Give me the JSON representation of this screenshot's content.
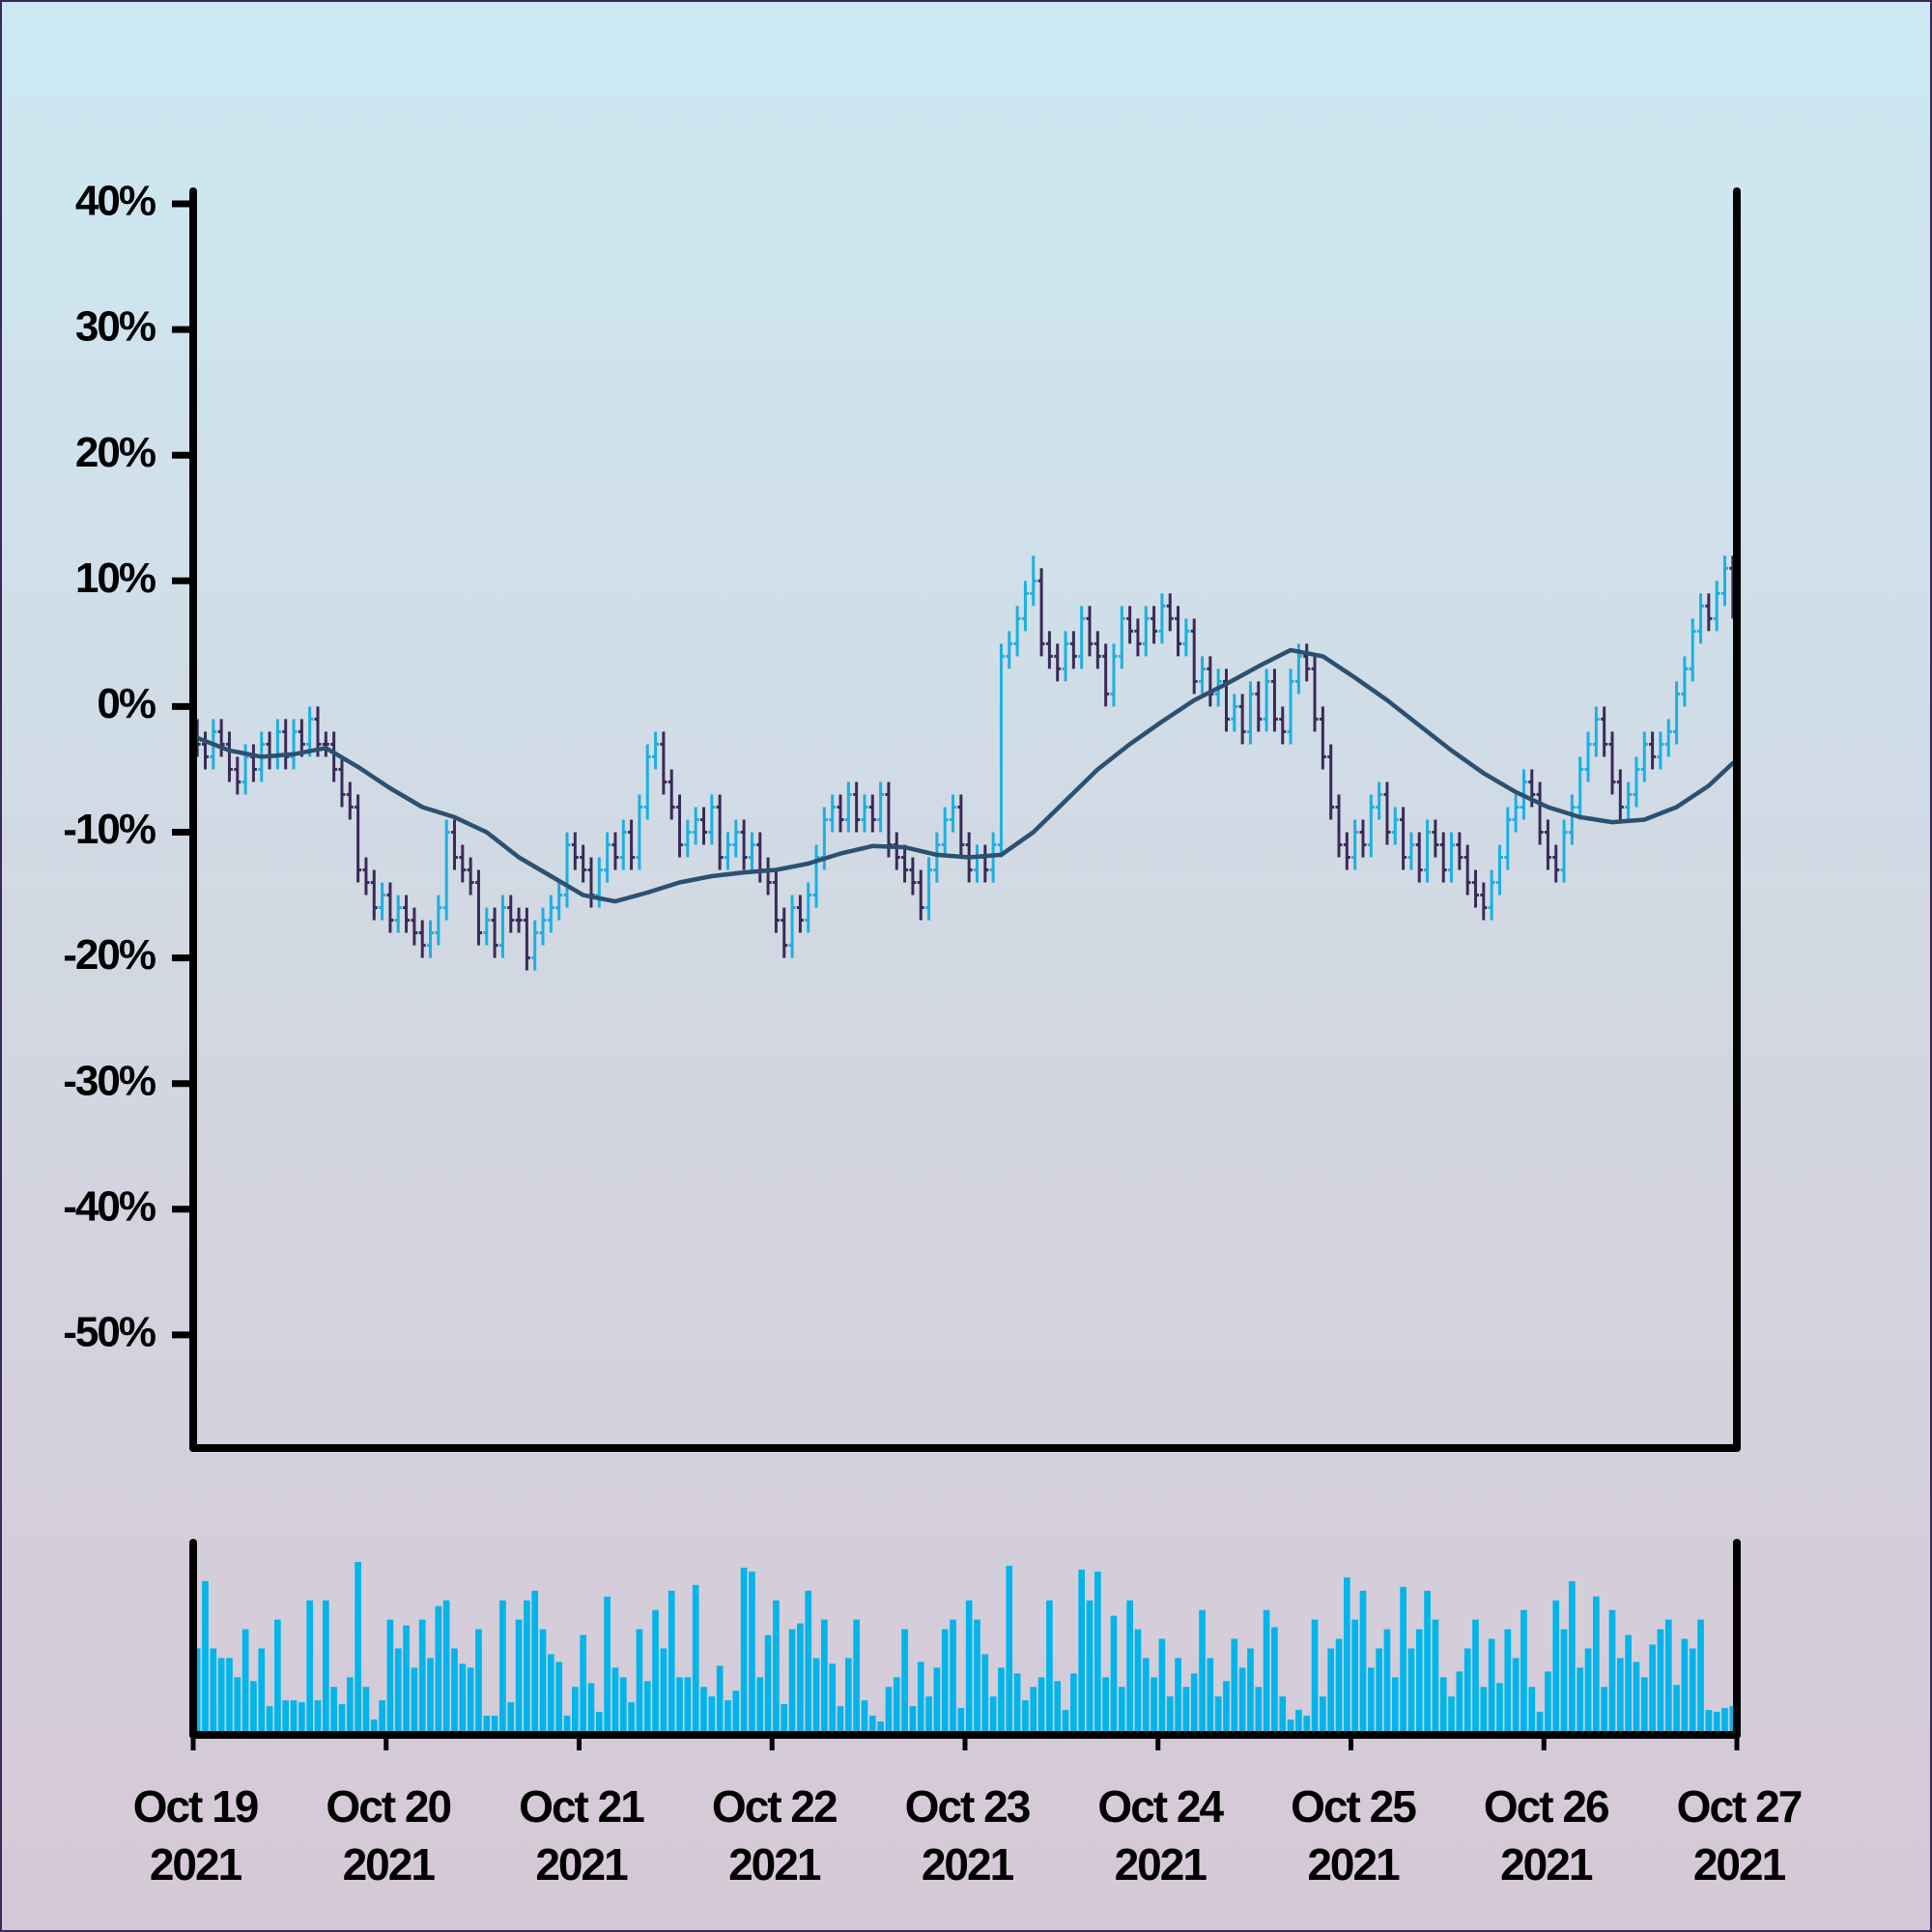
{
  "chart_data": {
    "type": "ohlc",
    "xlim": [
      0,
      192
    ],
    "xticks": [
      {
        "value": 0,
        "label": "Oct 19\n2021"
      },
      {
        "value": 24,
        "label": "Oct 20\n2021"
      },
      {
        "value": 48,
        "label": "Oct 21\n2021"
      },
      {
        "value": 72,
        "label": "Oct 22\n2021"
      },
      {
        "value": 96,
        "label": "Oct 23\n2021"
      },
      {
        "value": 120,
        "label": "Oct 24\n2021"
      },
      {
        "value": 144,
        "label": "Oct 25\n2021"
      },
      {
        "value": 168,
        "label": "Oct 26\n2021"
      },
      {
        "value": 192,
        "label": "Oct 27\n2021"
      }
    ],
    "ylim": [
      -59,
      41
    ],
    "yticks": [
      {
        "value": 40,
        "label": "40%"
      },
      {
        "value": 30,
        "label": "30%"
      },
      {
        "value": 20,
        "label": "20%"
      },
      {
        "value": 10,
        "label": "10%"
      },
      {
        "value": 0,
        "label": "0%"
      },
      {
        "value": -10,
        "label": "-10%"
      },
      {
        "value": -20,
        "label": "-20%"
      },
      {
        "value": -30,
        "label": "-30%"
      },
      {
        "value": -40,
        "label": "-40%"
      },
      {
        "value": -50,
        "label": "-50%"
      }
    ],
    "up_color": "#1cb0e2",
    "down_color": "#3a2a58",
    "open": [
      -2,
      -3,
      -4,
      -2,
      -3,
      -5,
      -6,
      -4,
      -5,
      -3,
      -4,
      -2,
      -4,
      -2,
      -3,
      -1,
      -3,
      -3,
      -5,
      -7,
      -8,
      -13,
      -14,
      -16,
      -15,
      -17,
      -16,
      -17,
      -18,
      -19,
      -18,
      -16,
      -10,
      -12,
      -13,
      -14,
      -18,
      -17,
      -19,
      -16,
      -17,
      -17,
      -20,
      -18,
      -17,
      -16,
      -15,
      -11,
      -12,
      -13,
      -15,
      -13,
      -11,
      -12,
      -10,
      -12,
      -8,
      -4,
      -3,
      -6,
      -8,
      -11,
      -10,
      -9,
      -10,
      -8,
      -12,
      -11,
      -10,
      -12,
      -11,
      -13,
      -14,
      -17,
      -19,
      -16,
      -17,
      -15,
      -12,
      -9,
      -8,
      -9,
      -7,
      -9,
      -8,
      -9,
      -7,
      -11,
      -12,
      -13,
      -14,
      -16,
      -13,
      -11,
      -9,
      -8,
      -11,
      -13,
      -12,
      -13,
      -11,
      4,
      5,
      7,
      9,
      10,
      5,
      4,
      3,
      5,
      4,
      7,
      5,
      4,
      1,
      4,
      7,
      6,
      5,
      7,
      6,
      8,
      7,
      5,
      6,
      2,
      3,
      1,
      2,
      -1,
      0,
      -2,
      1,
      -1,
      2,
      -1,
      -2,
      2,
      4,
      3,
      -1,
      -4,
      -8,
      -11,
      -12,
      -10,
      -11,
      -8,
      -7,
      -10,
      -9,
      -12,
      -11,
      -13,
      -10,
      -11,
      -13,
      -11,
      -12,
      -14,
      -15,
      -16,
      -14,
      -12,
      -9,
      -8,
      -6,
      -7,
      -10,
      -12,
      -13,
      -10,
      -8,
      -5,
      -3,
      -1,
      -3,
      -6,
      -8,
      -7,
      -5,
      -3,
      -4,
      -3,
      -2,
      1,
      3,
      6,
      8,
      7,
      9,
      11
    ],
    "high": [
      -1,
      -2,
      -1,
      -1,
      -2,
      -4,
      -3,
      -3,
      -2,
      -2,
      -1,
      -1,
      -1,
      -1,
      0,
      0,
      -2,
      -2,
      -4,
      -6,
      -7,
      -12,
      -13,
      -14,
      -14,
      -15,
      -15,
      -16,
      -17,
      -17,
      -15,
      -9,
      -9,
      -11,
      -12,
      -13,
      -16,
      -16,
      -15,
      -15,
      -16,
      -16,
      -17,
      -16,
      -15,
      -14,
      -10,
      -10,
      -11,
      -12,
      -12,
      -10,
      -10,
      -9,
      -9,
      -7,
      -3,
      -2,
      -2,
      -5,
      -7,
      -9,
      -8,
      -8,
      -7,
      -7,
      -10,
      -9,
      -9,
      -10,
      -10,
      -12,
      -13,
      -16,
      -15,
      -15,
      -14,
      -11,
      -8,
      -7,
      -7,
      -6,
      -6,
      -7,
      -7,
      -6,
      -6,
      -10,
      -11,
      -12,
      -13,
      -12,
      -10,
      -8,
      -7,
      -7,
      -10,
      -11,
      -11,
      -10,
      5,
      6,
      8,
      10,
      12,
      11,
      6,
      5,
      6,
      6,
      8,
      8,
      6,
      5,
      5,
      8,
      8,
      7,
      8,
      8,
      9,
      9,
      8,
      7,
      7,
      4,
      4,
      3,
      3,
      1,
      1,
      2,
      2,
      3,
      3,
      0,
      3,
      5,
      5,
      4,
      0,
      -3,
      -7,
      -10,
      -9,
      -9,
      -7,
      -6,
      -6,
      -8,
      -8,
      -10,
      -10,
      -9,
      -9,
      -10,
      -10,
      -10,
      -11,
      -13,
      -14,
      -13,
      -11,
      -8,
      -7,
      -5,
      -5,
      -6,
      -9,
      -11,
      -9,
      -7,
      -4,
      -2,
      0,
      0,
      -2,
      -5,
      -6,
      -4,
      -2,
      -2,
      -2,
      -1,
      2,
      4,
      7,
      9,
      9,
      10,
      12,
      12
    ],
    "low": [
      -4,
      -5,
      -5,
      -4,
      -6,
      -7,
      -7,
      -6,
      -6,
      -5,
      -5,
      -5,
      -5,
      -4,
      -4,
      -4,
      -4,
      -6,
      -8,
      -9,
      -14,
      -15,
      -17,
      -17,
      -18,
      -18,
      -18,
      -19,
      -20,
      -20,
      -19,
      -17,
      -13,
      -14,
      -15,
      -19,
      -19,
      -20,
      -20,
      -18,
      -18,
      -21,
      -21,
      -19,
      -18,
      -17,
      -16,
      -13,
      -14,
      -16,
      -16,
      -14,
      -13,
      -13,
      -13,
      -13,
      -9,
      -5,
      -7,
      -9,
      -12,
      -12,
      -11,
      -11,
      -11,
      -13,
      -13,
      -12,
      -13,
      -13,
      -14,
      -15,
      -18,
      -20,
      -20,
      -18,
      -18,
      -16,
      -13,
      -10,
      -10,
      -10,
      -10,
      -10,
      -10,
      -10,
      -12,
      -13,
      -14,
      -15,
      -17,
      -17,
      -14,
      -12,
      -10,
      -12,
      -14,
      -14,
      -14,
      -14,
      -12,
      3,
      4,
      6,
      8,
      4,
      3,
      2,
      2,
      3,
      3,
      4,
      3,
      0,
      0,
      3,
      5,
      4,
      4,
      5,
      5,
      6,
      4,
      4,
      1,
      1,
      0,
      0,
      -2,
      -2,
      -3,
      -3,
      -2,
      -2,
      -2,
      -3,
      -3,
      1,
      2,
      -2,
      -5,
      -9,
      -12,
      -13,
      -13,
      -12,
      -12,
      -9,
      -11,
      -11,
      -13,
      -13,
      -14,
      -14,
      -12,
      -14,
      -14,
      -13,
      -15,
      -16,
      -17,
      -17,
      -15,
      -13,
      -10,
      -9,
      -8,
      -11,
      -13,
      -14,
      -14,
      -11,
      -9,
      -6,
      -4,
      -4,
      -7,
      -9,
      -9,
      -8,
      -6,
      -5,
      -5,
      -4,
      -3,
      0,
      2,
      5,
      6,
      6,
      8,
      7
    ],
    "close": [
      -3,
      -4,
      -2,
      -3,
      -5,
      -6,
      -4,
      -5,
      -3,
      -4,
      -2,
      -4,
      -2,
      -3,
      -1,
      -3,
      -3,
      -5,
      -7,
      -8,
      -13,
      -14,
      -16,
      -15,
      -17,
      -16,
      -17,
      -18,
      -19,
      -18,
      -16,
      -10,
      -12,
      -13,
      -14,
      -18,
      -17,
      -19,
      -16,
      -17,
      -17,
      -20,
      -18,
      -17,
      -16,
      -15,
      -11,
      -12,
      -13,
      -15,
      -13,
      -11,
      -12,
      -10,
      -12,
      -8,
      -4,
      -3,
      -6,
      -8,
      -11,
      -10,
      -9,
      -10,
      -8,
      -12,
      -11,
      -10,
      -12,
      -11,
      -13,
      -14,
      -17,
      -19,
      -16,
      -17,
      -15,
      -12,
      -9,
      -8,
      -9,
      -7,
      -9,
      -8,
      -9,
      -7,
      -11,
      -12,
      -13,
      -14,
      -16,
      -13,
      -11,
      -9,
      -8,
      -11,
      -13,
      -12,
      -13,
      -11,
      4,
      5,
      7,
      9,
      10,
      5,
      4,
      3,
      5,
      4,
      7,
      5,
      4,
      1,
      4,
      7,
      6,
      5,
      7,
      6,
      8,
      7,
      5,
      6,
      2,
      3,
      1,
      2,
      -1,
      0,
      -2,
      1,
      -1,
      2,
      -1,
      -2,
      2,
      4,
      3,
      -1,
      -4,
      -8,
      -11,
      -12,
      -10,
      -11,
      -8,
      -7,
      -10,
      -9,
      -12,
      -11,
      -13,
      -10,
      -11,
      -13,
      -11,
      -12,
      -14,
      -15,
      -16,
      -14,
      -12,
      -9,
      -8,
      -6,
      -7,
      -10,
      -12,
      -13,
      -10,
      -8,
      -5,
      -3,
      -1,
      -3,
      -6,
      -8,
      -7,
      -5,
      -3,
      -4,
      -3,
      -2,
      1,
      3,
      6,
      8,
      7,
      9,
      11,
      8
    ],
    "ma": {
      "color": "#2c5070",
      "x": [
        0,
        4,
        8,
        12,
        16,
        20,
        24,
        28,
        32,
        36,
        40,
        44,
        48,
        52,
        56,
        60,
        64,
        68,
        72,
        76,
        80,
        84,
        88,
        92,
        96,
        100,
        104,
        108,
        112,
        116,
        120,
        124,
        128,
        132,
        136,
        140,
        144,
        148,
        152,
        156,
        160,
        164,
        168,
        172,
        176,
        180,
        184,
        188,
        191
      ],
      "values": [
        -2.5,
        -3.5,
        -4,
        -3.8,
        -3.3,
        -4.8,
        -6.5,
        -8,
        -8.8,
        -10,
        -12,
        -13.5,
        -15,
        -15.5,
        -14.8,
        -14,
        -13.5,
        -13.2,
        -13,
        -12.5,
        -11.7,
        -11.1,
        -11.2,
        -11.8,
        -12,
        -11.8,
        -10,
        -7.5,
        -5,
        -3,
        -1.2,
        0.5,
        1.8,
        3.2,
        4.5,
        4,
        2.3,
        0.5,
        -1.5,
        -3.5,
        -5.3,
        -6.8,
        -8,
        -8.8,
        -9.2,
        -9,
        -8,
        -6.3,
        -4.5
      ]
    },
    "volume": {
      "color": "#00b5ea",
      "ylim": [
        0,
        100
      ],
      "values": [
        45,
        80,
        45,
        40,
        40,
        30,
        55,
        28,
        45,
        15,
        60,
        18,
        18,
        17,
        70,
        18,
        70,
        25,
        16,
        30,
        90,
        25,
        8,
        18,
        60,
        45,
        57,
        35,
        60,
        40,
        67,
        70,
        45,
        37,
        35,
        55,
        10,
        10,
        70,
        17,
        60,
        70,
        75,
        55,
        42,
        38,
        10,
        25,
        52,
        27,
        12,
        72,
        35,
        30,
        17,
        55,
        28,
        65,
        45,
        75,
        30,
        30,
        78,
        25,
        20,
        36,
        18,
        23,
        87,
        85,
        30,
        52,
        70,
        16,
        55,
        58,
        75,
        40,
        60,
        37,
        15,
        40,
        60,
        18,
        10,
        7,
        25,
        30,
        55,
        15,
        38,
        20,
        35,
        55,
        60,
        14,
        70,
        60,
        42,
        20,
        35,
        88,
        32,
        18,
        25,
        30,
        70,
        28,
        13,
        32,
        86,
        70,
        85,
        30,
        62,
        25,
        70,
        55,
        40,
        30,
        50,
        20,
        40,
        25,
        32,
        65,
        40,
        20,
        28,
        50,
        35,
        45,
        25,
        65,
        56,
        20,
        8,
        13,
        10,
        60,
        20,
        45,
        50,
        82,
        60,
        75,
        35,
        45,
        55,
        30,
        77,
        45,
        55,
        75,
        60,
        30,
        20,
        33,
        45,
        60,
        25,
        50,
        27,
        55,
        40,
        65,
        25,
        12,
        33,
        70,
        55,
        80,
        35,
        45,
        72,
        25,
        65,
        40,
        52,
        38,
        30,
        47,
        55,
        60,
        26,
        50,
        45,
        60,
        13,
        12,
        14,
        15
      ]
    }
  }
}
